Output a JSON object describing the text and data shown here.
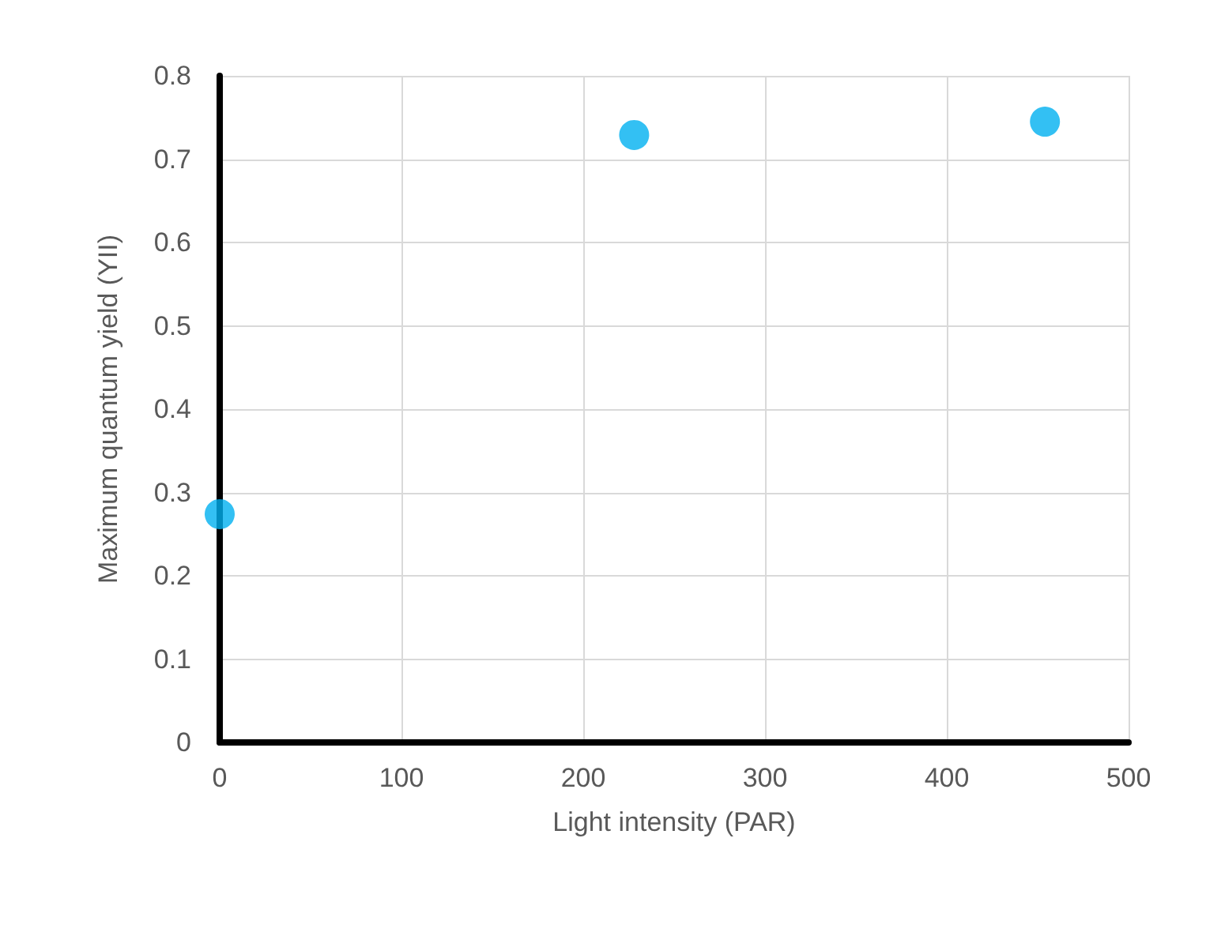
{
  "chart_data": {
    "type": "scatter",
    "xlabel": "Light intensity (PAR)",
    "ylabel": "Maximum quantum yield (YII)",
    "x": [
      0,
      228,
      454
    ],
    "series": [
      {
        "color": "#00b0f0",
        "values": [
          0.274,
          0.729,
          0.745
        ]
      }
    ],
    "xlim": [
      0,
      500
    ],
    "xticks": [
      0,
      100,
      200,
      300,
      400,
      500
    ],
    "ylim": [
      0,
      0.8
    ],
    "yticks": [
      0,
      0.1,
      0.2,
      0.3,
      0.4,
      0.5,
      0.6,
      0.7,
      0.8
    ],
    "grid": true,
    "marker": "circle"
  }
}
